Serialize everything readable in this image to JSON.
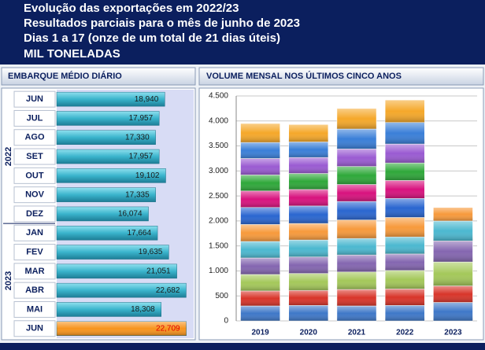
{
  "header": {
    "lines": [
      "Evolução das exportações em 2022/23",
      "Resultados parciais para o mês de junho de 2023",
      "Dias 1 a 17 (onze de um total de 21 dias úteis)",
      "MIL TONELADAS"
    ]
  },
  "chart_data": [
    {
      "type": "hbar",
      "title": "EMBARQUE MÉDIO DIÁRIO",
      "xlim": [
        0,
        24000
      ],
      "color": "#3ab4cc",
      "label_color": "#1a1a1a",
      "groups": [
        {
          "name": "2022",
          "categories": [
            "JUN",
            "JUL",
            "AGO",
            "SET",
            "OUT",
            "NOV",
            "DEZ"
          ],
          "values": [
            18940,
            17957,
            17330,
            17957,
            19102,
            17335,
            16074
          ],
          "value_labels": [
            "18,940",
            "17,957",
            "17,330",
            "17,957",
            "19,102",
            "17,335",
            "16,074"
          ]
        },
        {
          "name": "2023",
          "categories": [
            "JAN",
            "FEV",
            "MAR",
            "ABR",
            "MAI",
            "JUN"
          ],
          "values": [
            17664,
            19635,
            21051,
            22682,
            18308,
            22709
          ],
          "value_labels": [
            "17,664",
            "19,635",
            "21,051",
            "22,682",
            "18,308",
            "22,709"
          ],
          "colors": [
            null,
            null,
            null,
            null,
            null,
            "#f7941d"
          ],
          "label_colors": [
            null,
            null,
            null,
            null,
            null,
            "#e00000"
          ]
        }
      ]
    },
    {
      "type": "stacked_bar",
      "title": "VOLUME MENSAL NOS ÚLTIMOS CINCO ANOS",
      "categories": [
        "2019",
        "2020",
        "2021",
        "2022",
        "2023"
      ],
      "ylim": [
        0,
        4500
      ],
      "yticks": [
        0,
        {
          "value": 500,
          "label": "500"
        },
        {
          "value": 1000,
          "label": "1.000"
        },
        {
          "value": 1500,
          "label": "1.500"
        },
        {
          "value": 2000,
          "label": "2.000"
        },
        {
          "value": 2500,
          "label": "2.500"
        },
        {
          "value": 3000,
          "label": "3.000"
        },
        {
          "value": 3500,
          "label": "3.500"
        },
        {
          "value": 4000,
          "label": "4.000"
        },
        {
          "value": 4500,
          "label": "4.500"
        }
      ],
      "grid": true,
      "series": [
        {
          "color": "#3f78c8",
          "values": [
            300,
            310,
            300,
            310,
            370
          ]
        },
        {
          "color": "#d8352a",
          "values": [
            300,
            300,
            330,
            330,
            330
          ]
        },
        {
          "color": "#a4c85a",
          "values": [
            330,
            340,
            350,
            370,
            480
          ]
        },
        {
          "color": "#8466b0",
          "values": [
            330,
            330,
            340,
            330,
            420
          ]
        },
        {
          "color": "#4cb8d0",
          "values": [
            330,
            340,
            330,
            340,
            400
          ]
        },
        {
          "color": "#f79a3c",
          "values": [
            340,
            330,
            370,
            390,
            270
          ]
        },
        {
          "color": "#2a66d0",
          "values": [
            340,
            350,
            370,
            380,
            null
          ]
        },
        {
          "color": "#d8127e",
          "values": [
            330,
            330,
            340,
            360,
            null
          ]
        },
        {
          "color": "#2fa83a",
          "values": [
            320,
            320,
            360,
            350,
            null
          ]
        },
        {
          "color": "#9a5bd2",
          "values": [
            330,
            320,
            350,
            380,
            null
          ]
        },
        {
          "color": "#3a7fd8",
          "values": [
            320,
            310,
            400,
            430,
            null
          ]
        },
        {
          "color": "#f5a82a",
          "values": [
            380,
            350,
            410,
            450,
            null
          ]
        }
      ]
    }
  ]
}
